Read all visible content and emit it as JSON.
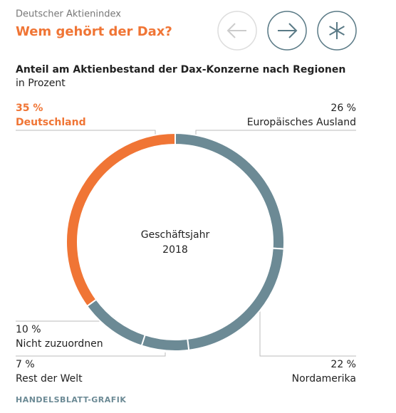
{
  "header": {
    "kicker": "Deutscher Aktienindex",
    "title": "Wem gehört der Dax?"
  },
  "chart_data": {
    "type": "donut",
    "title": "Anteil am Aktienbestand der Dax-Konzerne nach Regionen",
    "subtitle": "in Prozent",
    "center_label": [
      "Geschäftsjahr",
      "2018"
    ],
    "categories": [
      "Europäisches Ausland",
      "Nordamerika",
      "Rest der Welt",
      "Nicht zuzuordnen",
      "Deutschland"
    ],
    "values": [
      26,
      22,
      7,
      10,
      35
    ],
    "value_labels": [
      "26 %",
      "22 %",
      "7 %",
      "10 %",
      "35 %"
    ],
    "colors": [
      "#6c8a95",
      "#6c8a95",
      "#6c8a95",
      "#6c8a95",
      "#f07535"
    ]
  },
  "source": "HANDELSBLATT-GRAFIK"
}
